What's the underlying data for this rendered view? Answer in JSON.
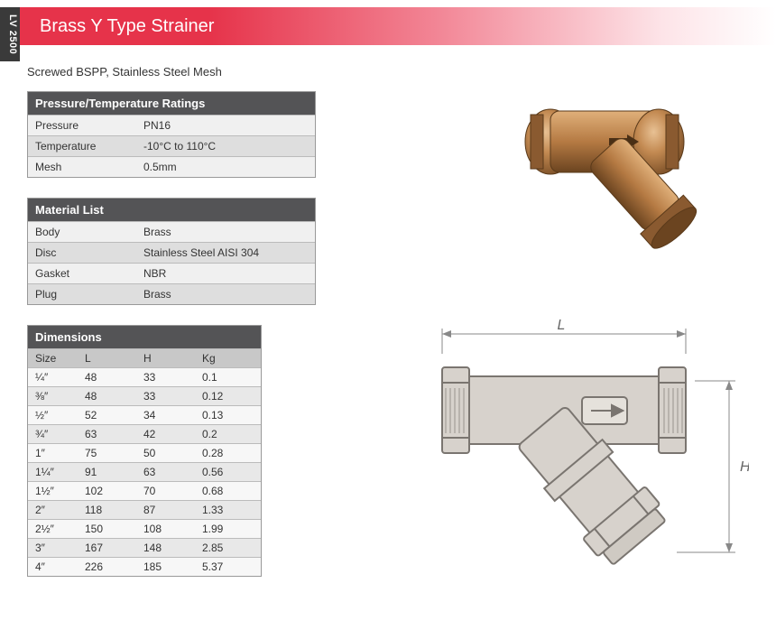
{
  "side_label": "LV 2500",
  "header": {
    "title": "Brass Y Type Strainer"
  },
  "subtitle": "Screwed BSPP, Stainless Steel Mesh",
  "ratings": {
    "title": "Pressure/Temperature Ratings",
    "rows": [
      {
        "k": "Pressure",
        "v": "PN16"
      },
      {
        "k": "Temperature",
        "v": "-10°C to 110°C"
      },
      {
        "k": "Mesh",
        "v": "0.5mm"
      }
    ]
  },
  "materials": {
    "title": "Material List",
    "rows": [
      {
        "k": "Body",
        "v": "Brass"
      },
      {
        "k": "Disc",
        "v": "Stainless Steel AISI 304"
      },
      {
        "k": "Gasket",
        "v": "NBR"
      },
      {
        "k": "Plug",
        "v": "Brass"
      }
    ]
  },
  "dimensions": {
    "title": "Dimensions",
    "columns": [
      "Size",
      "L",
      "H",
      "Kg"
    ],
    "rows": [
      [
        "¼″",
        "48",
        "33",
        "0.1"
      ],
      [
        "⅜″",
        "48",
        "33",
        "0.12"
      ],
      [
        "½″",
        "52",
        "34",
        "0.13"
      ],
      [
        "¾″",
        "63",
        "42",
        "0.2"
      ],
      [
        "1″",
        "75",
        "50",
        "0.28"
      ],
      [
        "1¼″",
        "91",
        "63",
        "0.56"
      ],
      [
        "1½″",
        "102",
        "70",
        "0.68"
      ],
      [
        "2″",
        "118",
        "87",
        "1.33"
      ],
      [
        "2½″",
        "150",
        "108",
        "1.99"
      ],
      [
        "3″",
        "167",
        "148",
        "2.85"
      ],
      [
        "4″",
        "226",
        "185",
        "5.37"
      ]
    ]
  },
  "diagram": {
    "label_L": "L",
    "label_H": "H",
    "colors": {
      "body_fill": "#d7d2cc",
      "body_stroke": "#7a7570",
      "dim_line": "#888888",
      "dim_text": "#666666",
      "bg_shadow": "#e8e6e3"
    }
  },
  "photo": {
    "colors": {
      "brass_light": "#d9a46a",
      "brass_mid": "#b57a43",
      "brass_dark": "#7a4e26",
      "shadow": "#6b4420"
    }
  }
}
